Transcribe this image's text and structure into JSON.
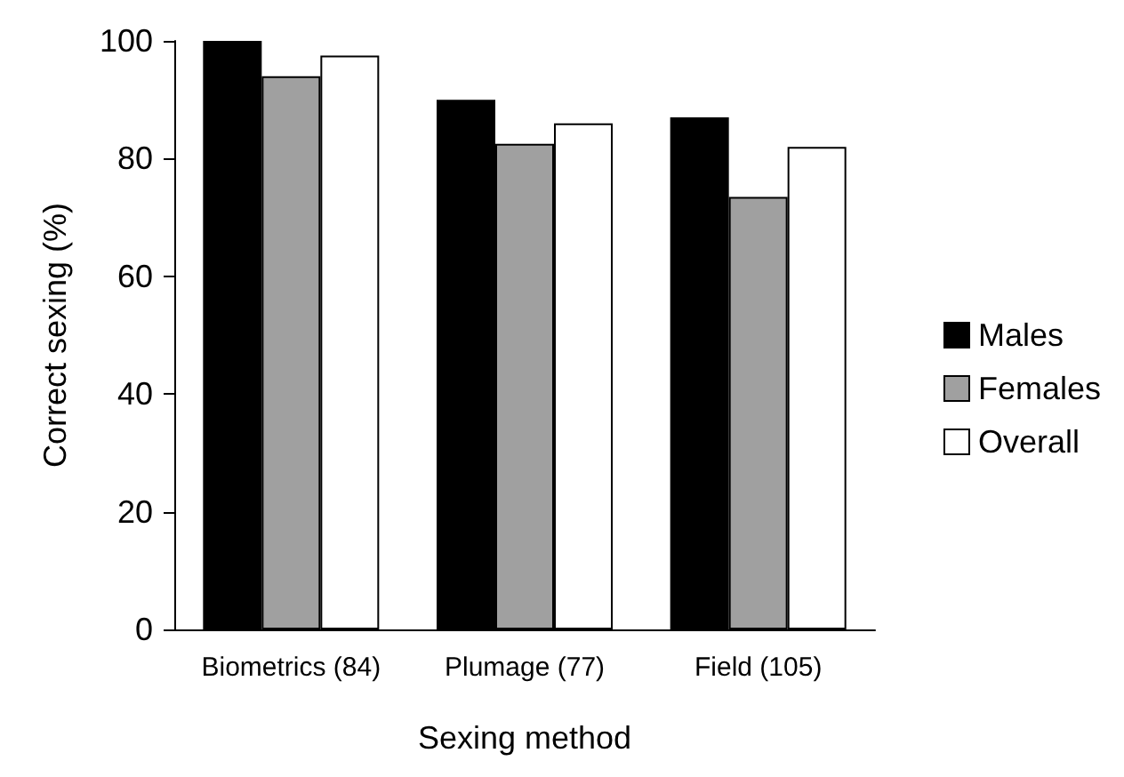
{
  "chart_data": {
    "type": "bar",
    "xlabel": "Sexing method",
    "ylabel": "Correct sexing (%)",
    "categories": [
      "Biometrics (84)",
      "Plumage (77)",
      "Field (105)"
    ],
    "series": [
      {
        "name": "Males",
        "color": "#000000",
        "values": [
          100,
          90,
          87
        ]
      },
      {
        "name": "Females",
        "color": "#a0a0a0",
        "values": [
          94,
          82.5,
          73.5
        ]
      },
      {
        "name": "Overall",
        "color": "#ffffff",
        "values": [
          97.5,
          86,
          82
        ]
      }
    ],
    "ylim": [
      0,
      100
    ],
    "yticks": [
      0,
      20,
      40,
      60,
      80,
      100
    ],
    "grid": false,
    "legend": "right"
  }
}
